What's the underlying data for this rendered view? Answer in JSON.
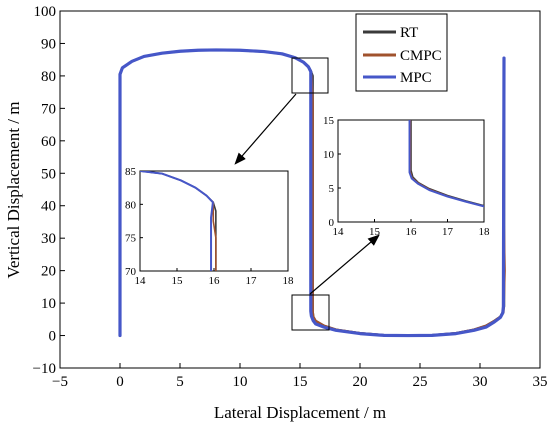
{
  "chart_data": {
    "type": "line",
    "title": "",
    "xlabel": "Lateral Displacement / m",
    "ylabel": "Vertical Displacement / m",
    "xlim": [
      -5,
      35
    ],
    "ylim": [
      -10,
      100
    ],
    "xticks": [
      "−5",
      "0",
      "5",
      "10",
      "15",
      "20",
      "25",
      "30",
      "35"
    ],
    "yticks": [
      "−10",
      "0",
      "10",
      "20",
      "30",
      "40",
      "50",
      "60",
      "70",
      "80",
      "90",
      "100"
    ],
    "legend_position": "top-right",
    "colors": {
      "RT": "#3a3a3a",
      "CMPC": "#a0522d",
      "MPC": "#4657c8"
    },
    "series": [
      {
        "name": "RT",
        "x": [
          0,
          0,
          0.2,
          1,
          2,
          3.5,
          5,
          6.5,
          8,
          10,
          12,
          13.5,
          14.6,
          15.3,
          15.7,
          15.9,
          16.05,
          16.05,
          16.1,
          16.3,
          17,
          18,
          20,
          22,
          24,
          26,
          28,
          29.5,
          30.5,
          31.2,
          31.7,
          31.9,
          32,
          32,
          32
        ],
        "y": [
          0,
          80.5,
          82.5,
          84.5,
          86,
          87,
          87.6,
          87.9,
          88,
          87.9,
          87.5,
          86.8,
          85.6,
          84.2,
          82.8,
          81.5,
          80,
          7.5,
          5.8,
          4.5,
          3,
          1.8,
          0.7,
          0.1,
          0,
          0.1,
          0.7,
          1.8,
          3,
          4.5,
          5.8,
          7.2,
          9,
          60,
          85.5
        ]
      },
      {
        "name": "CMPC",
        "x": [
          0,
          0,
          0.2,
          1,
          2,
          3.5,
          5,
          6.5,
          8,
          10,
          12,
          13.5,
          14.6,
          15.3,
          15.7,
          15.9,
          15.95,
          16.05,
          16.05,
          16.1,
          16.3,
          17,
          18,
          20,
          22,
          24,
          26,
          28,
          29.5,
          30.5,
          31.2,
          31.7,
          31.95,
          32.05,
          31.95,
          32
        ],
        "y": [
          0,
          80.5,
          82.5,
          84.5,
          86,
          87,
          87.6,
          87.9,
          88,
          87.9,
          87.5,
          86.8,
          85.6,
          84.2,
          82.8,
          81.5,
          80,
          72,
          7.5,
          5.8,
          4.5,
          3,
          1.8,
          0.7,
          0.1,
          0,
          0.1,
          0.7,
          1.8,
          3,
          4.5,
          5.8,
          7.2,
          20,
          40,
          85.5
        ]
      },
      {
        "name": "MPC",
        "x": [
          0,
          0,
          0.2,
          1,
          2,
          3.5,
          5,
          6.5,
          8,
          10,
          12,
          13.5,
          14.6,
          15.3,
          15.7,
          15.9,
          15.9,
          15.95,
          16.1,
          16.3,
          17,
          18,
          20,
          22,
          24,
          26,
          28,
          29.5,
          30.5,
          31.2,
          31.7,
          31.9,
          31.95,
          32
        ],
        "y": [
          0,
          80.5,
          82.5,
          84.5,
          86,
          87,
          87.6,
          87.9,
          88,
          87.9,
          87.5,
          86.8,
          85.6,
          84.2,
          82.8,
          81.3,
          7.5,
          6,
          4.6,
          3.6,
          2.6,
          1.6,
          0.6,
          0.05,
          0,
          0.05,
          0.6,
          1.6,
          2.6,
          4.2,
          5.6,
          7,
          9,
          85.5
        ]
      }
    ],
    "insets": [
      {
        "xlim": [
          14,
          18
        ],
        "ylim": [
          70,
          85
        ],
        "xticks": [
          "14",
          "15",
          "16",
          "17",
          "18"
        ],
        "yticks": [
          "70",
          "75",
          "80",
          "85"
        ],
        "series": [
          {
            "name": "RT",
            "x": [
              14,
              14.6,
              15.1,
              15.5,
              15.8,
              15.98,
              16.05,
              16.05
            ],
            "y": [
              85,
              84.6,
              83.6,
              82.5,
              81.3,
              80.3,
              79,
              70
            ]
          },
          {
            "name": "CMPC",
            "x": [
              14,
              14.6,
              15.1,
              15.5,
              15.8,
              15.98,
              15.98,
              16.05,
              16.05
            ],
            "y": [
              85,
              84.6,
              83.6,
              82.5,
              81.3,
              80.3,
              77.5,
              75,
              70
            ]
          },
          {
            "name": "MPC",
            "x": [
              14,
              14.6,
              15.1,
              15.5,
              15.8,
              15.97,
              15.92,
              15.92
            ],
            "y": [
              85,
              84.6,
              83.6,
              82.5,
              81.3,
              80.3,
              78,
              70
            ]
          }
        ]
      },
      {
        "xlim": [
          14,
          18
        ],
        "ylim": [
          0,
          15
        ],
        "xticks": [
          "14",
          "15",
          "16",
          "17",
          "18"
        ],
        "yticks": [
          "0",
          "5",
          "10",
          "15"
        ],
        "series": [
          {
            "name": "RT",
            "x": [
              16,
              16,
              16.05,
              16.2,
              16.5,
              17,
              17.5,
              18
            ],
            "y": [
              15,
              7.6,
              6.6,
              5.8,
              4.9,
              3.9,
              3.1,
              2.4
            ]
          },
          {
            "name": "CMPC",
            "x": [
              15.98,
              15.98,
              16.03,
              16.2,
              16.5,
              17,
              17.5,
              18
            ],
            "y": [
              15,
              7.4,
              6.5,
              5.7,
              4.8,
              3.8,
              3.0,
              2.3
            ]
          },
          {
            "name": "MPC",
            "x": [
              15.96,
              15.96,
              16.02,
              16.2,
              16.5,
              17,
              17.5,
              18
            ],
            "y": [
              15,
              7.3,
              6.4,
              5.6,
              4.7,
              3.75,
              3.0,
              2.3
            ]
          }
        ]
      }
    ]
  }
}
